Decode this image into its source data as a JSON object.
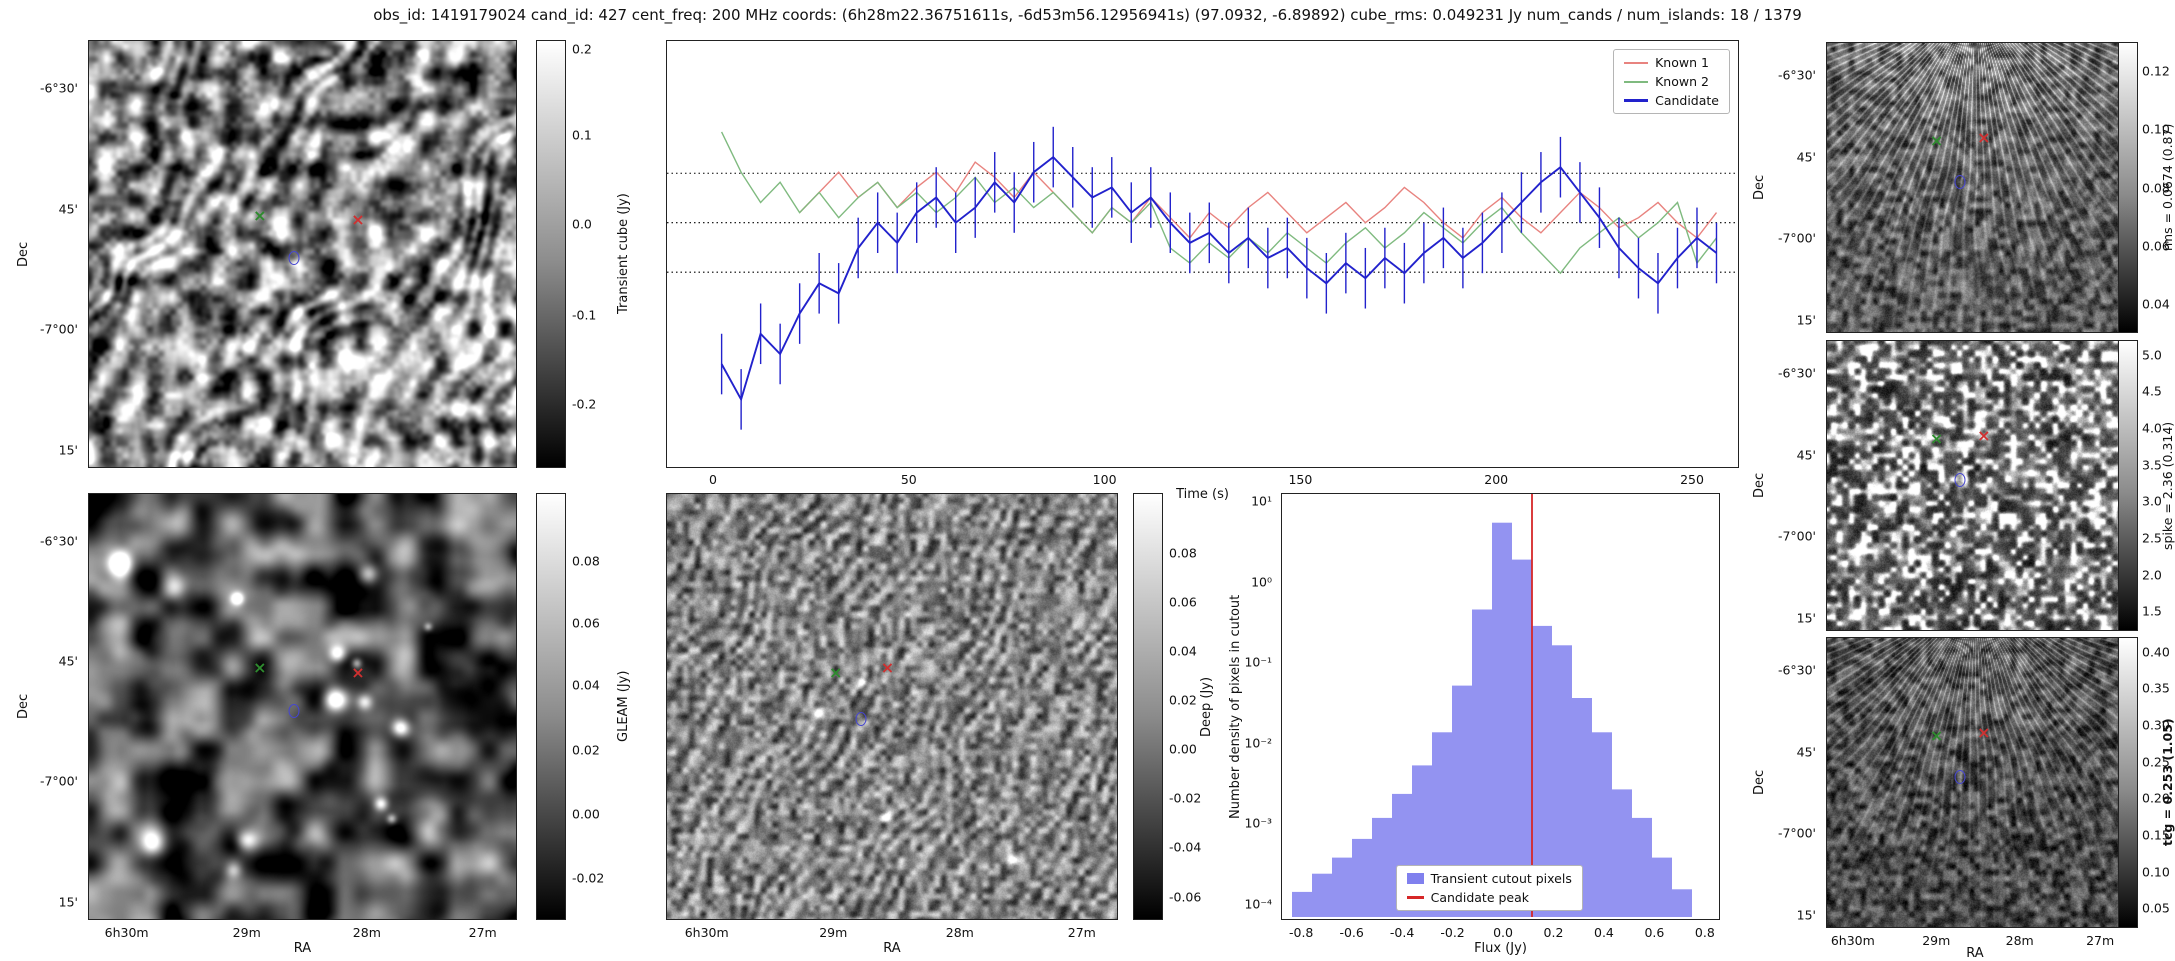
{
  "title": "obs_id: 1419179024 cand_id: 427 cent_freq: 200 MHz coords: (6h28m22.36751611s, -6d53m56.12956941s) (97.0932, -6.89892) cube_rms: 0.049231 Jy num_cands / num_islands: 18 / 1379",
  "axes": {
    "dec_label": "Dec",
    "ra_label": "RA",
    "dec_ticks": [
      "-6°30'",
      "45'",
      "-7°00'",
      "15'"
    ],
    "ra_ticks": [
      "6h30m",
      "29m",
      "28m",
      "27m"
    ]
  },
  "panels": {
    "transient": {
      "cb_label": "Transient cube (Jy)",
      "cb_ticks": [
        "0.2",
        "0.1",
        "0.0",
        "-0.1",
        "-0.2"
      ]
    },
    "gleam": {
      "cb_label": "GLEAM (Jy)",
      "cb_ticks": [
        "0.08",
        "0.06",
        "0.04",
        "0.02",
        "0.00",
        "-0.02"
      ]
    },
    "deep": {
      "cb_label": "Deep (Jy)",
      "cb_ticks": [
        "0.08",
        "0.06",
        "0.04",
        "0.02",
        "0.00",
        "-0.02",
        "-0.04",
        "-0.06"
      ]
    },
    "rms": {
      "cb_label": "rms = 0.0674 (0.87)",
      "cb_ticks": [
        "0.12",
        "0.10",
        "0.08",
        "0.06",
        "0.04"
      ]
    },
    "spike": {
      "cb_label": "spike = 2.36 (0.314)",
      "cb_ticks": [
        "5.0",
        "4.5",
        "4.0",
        "3.5",
        "3.0",
        "2.5",
        "2.0",
        "1.5"
      ]
    },
    "tcg": {
      "cb_label": "tcg = 0.253 (1.05)",
      "cb_ticks": [
        "0.40",
        "0.35",
        "0.30",
        "0.25",
        "0.20",
        "0.15",
        "0.10",
        "0.05"
      ]
    }
  },
  "chart_data": [
    {
      "type": "line",
      "title": "",
      "xlabel": "Time (s)",
      "ylabel": "",
      "xlim": [
        -12,
        262
      ],
      "ylim": [
        -0.48,
        0.36
      ],
      "hlines": [
        0.098,
        0,
        -0.098
      ],
      "x_tick_labels": [
        "0",
        "50",
        "100",
        "150",
        "200",
        "250"
      ],
      "legend_position": "upper right",
      "series": [
        {
          "name": "Known 1",
          "color": "#e8837f",
          "x": [
            22,
            27,
            32,
            37,
            42,
            47,
            52,
            57,
            62,
            67,
            72,
            77,
            82,
            87,
            92,
            97,
            102,
            107,
            112,
            117,
            122,
            127,
            132,
            137,
            142,
            147,
            152,
            157,
            162,
            167,
            172,
            177,
            182,
            187,
            192,
            197,
            202,
            207,
            212,
            217,
            222,
            227,
            232,
            237,
            242,
            247,
            252,
            257
          ],
          "y": [
            0.02,
            0.06,
            0.1,
            0.05,
            0.08,
            0.03,
            0.07,
            0.1,
            0.06,
            0.12,
            0.09,
            0.05,
            0.1,
            0.06,
            0.02,
            -0.02,
            0.03,
            0.0,
            0.05,
            0.01,
            -0.03,
            0.02,
            -0.01,
            0.03,
            0.06,
            0.02,
            -0.02,
            0.01,
            0.04,
            0.0,
            0.03,
            0.07,
            0.04,
            0.0,
            -0.03,
            0.02,
            0.05,
            0.01,
            -0.02,
            0.02,
            0.06,
            0.03,
            -0.01,
            0.01,
            0.04,
            0.0,
            -0.03,
            0.02
          ]
        },
        {
          "name": "Known 2",
          "color": "#7fba7f",
          "x": [
            2,
            7,
            12,
            17,
            22,
            27,
            32,
            37,
            42,
            47,
            52,
            57,
            62,
            67,
            72,
            77,
            82,
            87,
            92,
            97,
            102,
            107,
            112,
            117,
            122,
            127,
            132,
            137,
            142,
            147,
            152,
            157,
            162,
            167,
            172,
            177,
            182,
            187,
            192,
            197,
            202,
            207,
            212,
            217,
            222,
            227,
            232,
            237,
            242,
            247,
            252,
            257
          ],
          "y": [
            0.18,
            0.1,
            0.04,
            0.08,
            0.02,
            0.06,
            0.01,
            0.05,
            0.08,
            0.03,
            0.06,
            0.02,
            0.05,
            0.09,
            0.04,
            0.07,
            0.03,
            0.06,
            0.02,
            -0.02,
            0.03,
            0.0,
            0.04,
            -0.05,
            -0.08,
            -0.04,
            -0.07,
            -0.03,
            -0.06,
            -0.02,
            -0.05,
            -0.08,
            -0.04,
            -0.01,
            -0.05,
            -0.02,
            0.02,
            -0.01,
            -0.04,
            0.0,
            0.03,
            -0.02,
            -0.06,
            -0.1,
            -0.05,
            -0.02,
            0.01,
            -0.03,
            0.0,
            0.04,
            -0.08,
            -0.03
          ]
        },
        {
          "name": "Candidate",
          "color": "#2222cc",
          "yerr": 0.06,
          "x": [
            2,
            7,
            12,
            17,
            22,
            27,
            32,
            37,
            42,
            47,
            52,
            57,
            62,
            67,
            72,
            77,
            82,
            87,
            92,
            97,
            102,
            107,
            112,
            117,
            122,
            127,
            132,
            137,
            142,
            147,
            152,
            157,
            162,
            167,
            172,
            177,
            182,
            187,
            192,
            197,
            202,
            207,
            212,
            217,
            222,
            227,
            232,
            237,
            242,
            247,
            252,
            257
          ],
          "y": [
            -0.28,
            -0.35,
            -0.22,
            -0.26,
            -0.18,
            -0.12,
            -0.14,
            -0.05,
            0.0,
            -0.04,
            0.02,
            0.05,
            0.0,
            0.03,
            0.08,
            0.04,
            0.1,
            0.13,
            0.09,
            0.05,
            0.07,
            0.02,
            0.05,
            0.0,
            -0.04,
            -0.02,
            -0.06,
            -0.03,
            -0.07,
            -0.05,
            -0.09,
            -0.12,
            -0.08,
            -0.11,
            -0.07,
            -0.1,
            -0.06,
            -0.03,
            -0.07,
            -0.04,
            0.0,
            0.04,
            0.08,
            0.11,
            0.06,
            0.01,
            -0.05,
            -0.09,
            -0.12,
            -0.07,
            -0.03,
            -0.06
          ]
        }
      ]
    },
    {
      "type": "bar",
      "title": "",
      "xlabel": "Flux (Jy)",
      "ylabel": "Number density of pixels in cutout",
      "yscale": "log",
      "xlim": [
        -0.88,
        0.86
      ],
      "ylim": [
        6.3e-05,
        12.6
      ],
      "bin_width": 0.08,
      "bar_color": "#8080ee",
      "bin_centers": [
        -0.8,
        -0.72,
        -0.64,
        -0.56,
        -0.48,
        -0.4,
        -0.32,
        -0.24,
        -0.16,
        -0.08,
        0.0,
        0.08,
        0.16,
        0.24,
        0.32,
        0.4,
        0.48,
        0.56,
        0.64,
        0.72
      ],
      "densities": [
        0.00013,
        0.00022,
        0.00035,
        0.0006,
        0.0011,
        0.0022,
        0.005,
        0.013,
        0.05,
        0.45,
        5.5,
        1.9,
        0.28,
        0.16,
        0.035,
        0.013,
        0.0025,
        0.0011,
        0.00035,
        0.00014
      ],
      "candidate_peak": 0.12,
      "candidate_peak_color": "#d62728",
      "x_tick_labels": [
        "-0.8",
        "-0.6",
        "-0.4",
        "-0.2",
        "0.0",
        "0.2",
        "0.4",
        "0.6",
        "0.8"
      ],
      "y_tick_labels": [
        "10¹",
        "10⁰",
        "10⁻¹",
        "10⁻²",
        "10⁻³",
        "10⁻⁴"
      ],
      "y_tick_exponents": [
        1,
        0,
        -1,
        -2,
        -3,
        -4
      ],
      "legend": [
        {
          "label": "Transient cutout pixels",
          "color": "#8080ee",
          "type": "patch"
        },
        {
          "label": "Candidate peak",
          "color": "#d62728",
          "type": "line"
        }
      ],
      "legend_position": "lower center"
    }
  ]
}
